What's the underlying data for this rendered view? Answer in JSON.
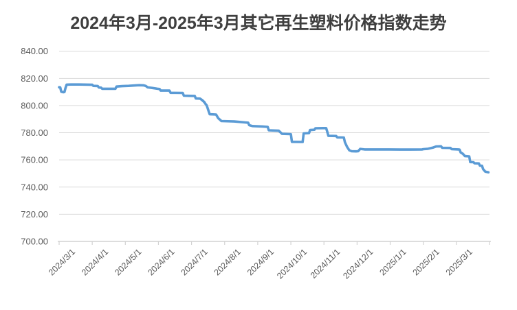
{
  "chart_data": {
    "type": "line",
    "title": "2024年3月-2025年3月其它再生塑料价格指数走势",
    "xlabel": "",
    "ylabel": "",
    "ylim": [
      700,
      840
    ],
    "grid": true,
    "legend_position": "none",
    "colors": {
      "line": "#5B9BD5",
      "gridline": "#D9D9D9",
      "axis": "#D2D2D2",
      "tick_text": "#595959",
      "title_text": "#3F3F3F"
    },
    "y_ticks": [
      {
        "value": 700,
        "label": "700.00"
      },
      {
        "value": 720,
        "label": "720.00"
      },
      {
        "value": 740,
        "label": "740.00"
      },
      {
        "value": 760,
        "label": "760.00"
      },
      {
        "value": 780,
        "label": "780.00"
      },
      {
        "value": 800,
        "label": "800.00"
      },
      {
        "value": 820,
        "label": "820.00"
      },
      {
        "value": 840,
        "label": "840.00"
      }
    ],
    "x_tick_labels": [
      "2024/3/1",
      "2024/4/1",
      "2024/5/1",
      "2024/6/1",
      "2024/7/1",
      "2024/8/1",
      "2024/9/1",
      "2024/10/1",
      "2024/11/1",
      "2024/12/1",
      "2025/1/1",
      "2025/2/1",
      "2025/3/1"
    ],
    "points": [
      [
        "2024/3/1",
        813.5
      ],
      [
        "2024/3/2",
        813.4
      ],
      [
        "2024/3/3",
        810.2
      ],
      [
        "2024/3/5",
        809.8
      ],
      [
        "2024/3/6",
        810.0
      ],
      [
        "2024/3/7",
        813.0
      ],
      [
        "2024/3/8",
        815.4
      ],
      [
        "2024/3/12",
        815.5
      ],
      [
        "2024/3/20",
        815.5
      ],
      [
        "2024/3/28",
        815.4
      ],
      [
        "2024/4/1",
        815.3
      ],
      [
        "2024/4/2",
        814.5
      ],
      [
        "2024/4/6",
        814.4
      ],
      [
        "2024/4/7",
        813.3
      ],
      [
        "2024/4/9",
        813.2
      ],
      [
        "2024/4/10",
        812.4
      ],
      [
        "2024/4/22",
        812.4
      ],
      [
        "2024/4/23",
        814.0
      ],
      [
        "2024/4/28",
        814.3
      ],
      [
        "2024/5/4",
        814.5
      ],
      [
        "2024/5/10",
        814.8
      ],
      [
        "2024/5/14",
        815.0
      ],
      [
        "2024/5/18",
        814.9
      ],
      [
        "2024/5/20",
        814.5
      ],
      [
        "2024/5/22",
        813.4
      ],
      [
        "2024/5/26",
        813.0
      ],
      [
        "2024/5/31",
        812.4
      ],
      [
        "2024/6/2",
        812.2
      ],
      [
        "2024/6/3",
        811.0
      ],
      [
        "2024/6/11",
        811.0
      ],
      [
        "2024/6/12",
        809.4
      ],
      [
        "2024/6/23",
        809.3
      ],
      [
        "2024/6/24",
        807.3
      ],
      [
        "2024/7/4",
        807.1
      ],
      [
        "2024/7/5",
        805.2
      ],
      [
        "2024/7/9",
        805.1
      ],
      [
        "2024/7/11",
        804.0
      ],
      [
        "2024/7/13",
        802.5
      ],
      [
        "2024/7/14",
        801.3
      ],
      [
        "2024/7/15",
        800.3
      ],
      [
        "2024/7/16",
        798.3
      ],
      [
        "2024/7/17",
        795.8
      ],
      [
        "2024/7/18",
        793.6
      ],
      [
        "2024/7/24",
        793.4
      ],
      [
        "2024/7/26",
        790.7
      ],
      [
        "2024/7/29",
        788.6
      ],
      [
        "2024/8/10",
        788.3
      ],
      [
        "2024/8/20",
        787.6
      ],
      [
        "2024/8/23",
        787.4
      ],
      [
        "2024/8/24",
        785.6
      ],
      [
        "2024/8/27",
        784.9
      ],
      [
        "2024/9/5",
        784.6
      ],
      [
        "2024/9/10",
        784.3
      ],
      [
        "2024/9/11",
        781.8
      ],
      [
        "2024/9/20",
        781.5
      ],
      [
        "2024/9/23",
        779.2
      ],
      [
        "2024/9/30",
        779.0
      ],
      [
        "2024/10/1",
        778.9
      ],
      [
        "2024/10/2",
        773.3
      ],
      [
        "2024/10/11",
        773.2
      ],
      [
        "2024/10/12",
        773.2
      ],
      [
        "2024/10/13",
        779.5
      ],
      [
        "2024/10/18",
        779.7
      ],
      [
        "2024/10/19",
        782.0
      ],
      [
        "2024/10/23",
        782.2
      ],
      [
        "2024/10/24",
        783.3
      ],
      [
        "2024/10/31",
        783.4
      ],
      [
        "2024/11/3",
        783.4
      ],
      [
        "2024/11/4",
        780.8
      ],
      [
        "2024/11/5",
        777.7
      ],
      [
        "2024/11/12",
        777.6
      ],
      [
        "2024/11/13",
        776.6
      ],
      [
        "2024/11/19",
        776.5
      ],
      [
        "2024/11/20",
        773.0
      ],
      [
        "2024/11/22",
        769.5
      ],
      [
        "2024/11/24",
        767.1
      ],
      [
        "2024/11/26",
        766.4
      ],
      [
        "2024/11/30",
        766.3
      ],
      [
        "2024/12/2",
        766.4
      ],
      [
        "2024/12/4",
        768.1
      ],
      [
        "2024/12/8",
        767.7
      ],
      [
        "2024/12/20",
        767.7
      ],
      [
        "2024/12/31",
        767.7
      ],
      [
        "2025/1/10",
        767.6
      ],
      [
        "2025/1/20",
        767.6
      ],
      [
        "2025/1/31",
        767.7
      ],
      [
        "2025/2/1",
        767.9
      ],
      [
        "2025/2/5",
        768.2
      ],
      [
        "2025/2/9",
        769.0
      ],
      [
        "2025/2/12",
        769.9
      ],
      [
        "2025/2/16",
        770.0
      ],
      [
        "2025/2/17",
        768.9
      ],
      [
        "2025/2/24",
        768.8
      ],
      [
        "2025/2/25",
        767.9
      ],
      [
        "2025/3/3",
        767.7
      ],
      [
        "2025/3/4",
        767.6
      ],
      [
        "2025/3/5",
        765.5
      ],
      [
        "2025/3/7",
        764.5
      ],
      [
        "2025/3/9",
        762.8
      ],
      [
        "2025/3/13",
        762.6
      ],
      [
        "2025/3/14",
        758.4
      ],
      [
        "2025/3/17",
        758.3
      ],
      [
        "2025/3/18",
        757.5
      ],
      [
        "2025/3/22",
        757.4
      ],
      [
        "2025/3/23",
        755.8
      ],
      [
        "2025/3/25",
        755.7
      ],
      [
        "2025/3/26",
        753.2
      ],
      [
        "2025/3/28",
        751.4
      ],
      [
        "2025/3/31",
        750.9
      ]
    ]
  }
}
